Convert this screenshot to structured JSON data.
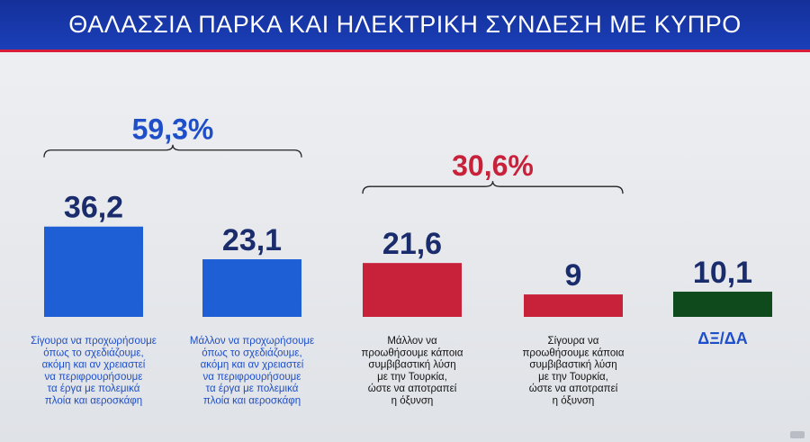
{
  "header": {
    "title": "ΘΑΛΑΣΣΙΑ ΠΑΡΚΑ ΚΑΙ ΗΛΕΚΤΡΙΚΗ ΣΥΝΔΕΣΗ ΜΕ ΚΥΠΡΟ"
  },
  "chart_data": {
    "type": "bar",
    "title": "ΘΑΛΑΣΣΙΑ ΠΑΡΚΑ ΚΑΙ ΗΛΕΚΤΡΙΚΗ ΣΥΝΔΕΣΗ ΜΕ ΚΥΠΡΟ",
    "xlabel": "",
    "ylabel": "",
    "ylim": [
      0,
      40
    ],
    "grid": false,
    "legend": "none",
    "categories": [
      "Σίγουρα να προχωρήσουμε όπως το σχεδιάζουμε, ακόμη και αν χρειαστεί να περιφρουρήσουμε τα έργα με πολεμικά πλοία και αεροσκάφη",
      "Μάλλον να προχωρήσουμε όπως το σχεδιάζουμε, ακόμη και αν χρειαστεί να περιφρουρήσουμε τα έργα με πολεμικά πλοία και αεροσκάφη",
      "Μάλλον να προωθήσουμε κάποια συμβιβαστική λύση με την Τουρκία, ώστε να αποτραπεί η όξυνση",
      "Σίγουρα να προωθήσουμε κάποια συμβιβαστική λύση με την Τουρκία, ώστε να αποτραπεί η όξυνση",
      "ΔΞ/ΔΑ"
    ],
    "label_lines": [
      [
        "Σίγουρα να προχωρήσουμε",
        "όπως το σχεδιάζουμε,",
        "ακόμη και αν χρειαστεί",
        "να περιφρουρήσουμε",
        "τα έργα με πολεμικά",
        "πλοία και αεροσκάφη"
      ],
      [
        "Μάλλον να προχωρήσουμε",
        "όπως το σχεδιάζουμε,",
        "ακόμη και αν χρειαστεί",
        "να περιφρουρήσουμε",
        "τα έργα με πολεμικά",
        "πλοία και αεροσκάφη"
      ],
      [
        "Μάλλον να",
        "προωθήσουμε κάποια",
        "συμβιβαστική λύση",
        "με την Τουρκία,",
        "ώστε να αποτραπεί",
        "η όξυνση"
      ],
      [
        "Σίγουρα να",
        "προωθήσουμε κάποια",
        "συμβιβαστική λύση",
        "με την Τουρκία,",
        "ώστε να αποτραπεί",
        "η όξυνση"
      ],
      [
        "ΔΞ/ΔΑ"
      ]
    ],
    "values": [
      36.2,
      23.1,
      21.6,
      9,
      10.1
    ],
    "value_labels": [
      "36,2",
      "23,1",
      "21,6",
      "9",
      "10,1"
    ],
    "bar_colors": [
      "#1f5fd6",
      "#1f5fd6",
      "#c8213a",
      "#c8213a",
      "#0f4a1c"
    ],
    "label_colors": [
      "#1f4fc8",
      "#1f4fc8",
      "#111111",
      "#111111",
      "#1f4fc8"
    ],
    "groups": [
      {
        "label": "59,3%",
        "members": [
          0,
          1
        ],
        "color": "#1f4fc8"
      },
      {
        "label": "30,6%",
        "members": [
          2,
          3
        ],
        "color": "#c8213a"
      }
    ]
  }
}
